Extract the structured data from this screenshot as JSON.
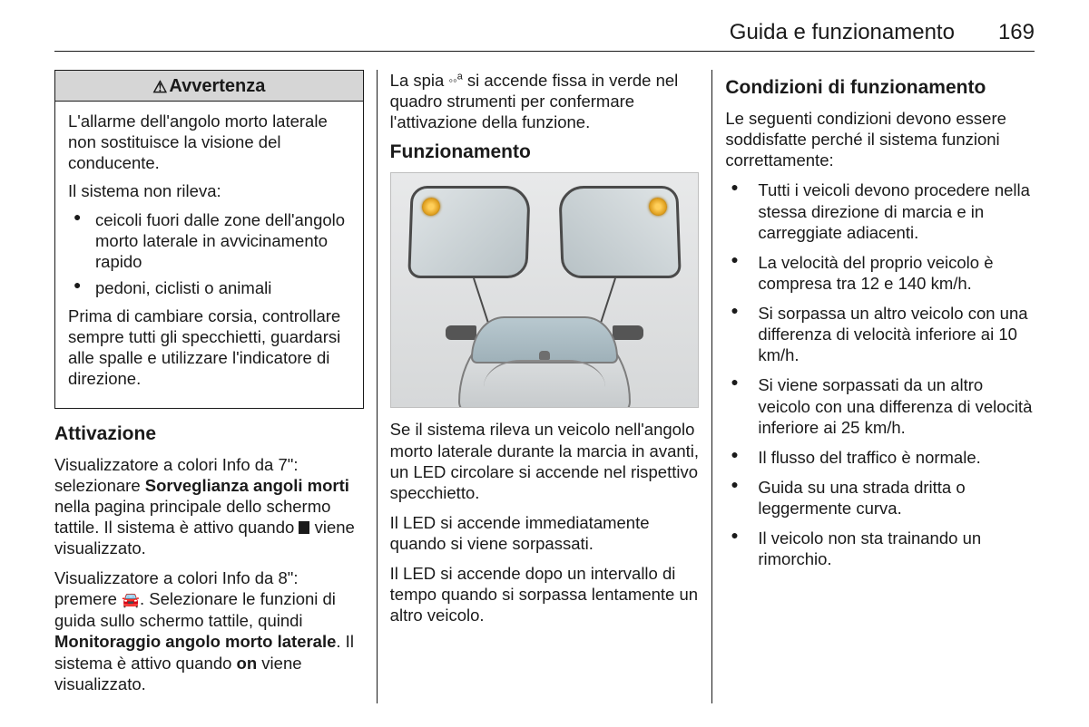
{
  "header": {
    "section_title": "Guida e funzionamento",
    "page_number": "169"
  },
  "col1": {
    "warning": {
      "title": "Avvertenza",
      "p1": "L'allarme dell'angolo morto laterale non sostituisce la visione del conducente.",
      "p2": "Il sistema non rileva:",
      "b1": "ceicoli fuori dalle zone dell'angolo morto laterale in avvicinamento rapido",
      "b2": "pedoni, ciclisti o animali",
      "p3": "Prima di cambiare corsia, controllare sempre tutti gli specchietti, guardarsi alle spalle e utilizzare l'indicatore di direzione."
    },
    "h_attivazione": "Attivazione",
    "p7a": "Visualizzatore a colori Info da 7\": selezionare ",
    "p7b": "Sorveglianza angoli morti",
    "p7c": " nella pagina principale dello schermo tattile. Il sistema è attivo quando ",
    "p7d": " viene visualizzato.",
    "p8a": "Visualizzatore a colori Info da 8\": premere ",
    "p8b": ". Selezionare le funzioni di guida sullo schermo tattile, quindi ",
    "p8c": "Monitoraggio angolo morto laterale",
    "p8d": ". Il sistema è attivo quando ",
    "p8e": "on",
    "p8f": " viene visualizzato."
  },
  "col2": {
    "spia_a": "La spia ",
    "spia_b": " si accende fissa in verde nel quadro strumenti per confermare l'attivazione della funzione.",
    "h_funz": "Funzionamento",
    "p1": "Se il sistema rileva un veicolo nell'angolo morto laterale durante la marcia in avanti, un LED circolare si accende nel rispettivo specchietto.",
    "p2": "Il LED si accende immediatamente quando si viene sorpassati.",
    "p3": "Il LED si accende dopo un intervallo di tempo quando si sorpassa lentamente un altro veicolo."
  },
  "col3": {
    "h_cond": "Condizioni di funzionamento",
    "intro": "Le seguenti condizioni devono essere soddisfatte perché il sistema funzioni correttamente:",
    "c1": "Tutti i veicoli devono procedere nella stessa direzione di marcia e in carreggiate adiacenti.",
    "c2": "La velocità del proprio veicolo è compresa tra 12 e 140 km/h.",
    "c3": "Si sorpassa un altro veicolo con una differenza di velocità inferiore ai 10 km/h.",
    "c4": "Si viene sorpassati da un altro veicolo con una differenza di velocità inferiore ai 25 km/h.",
    "c5": "Il flusso del traffico è normale.",
    "c6": "Guida su una strada dritta o leggermente curva.",
    "c7": "Il veicolo non sta trainando un rimorchio."
  }
}
